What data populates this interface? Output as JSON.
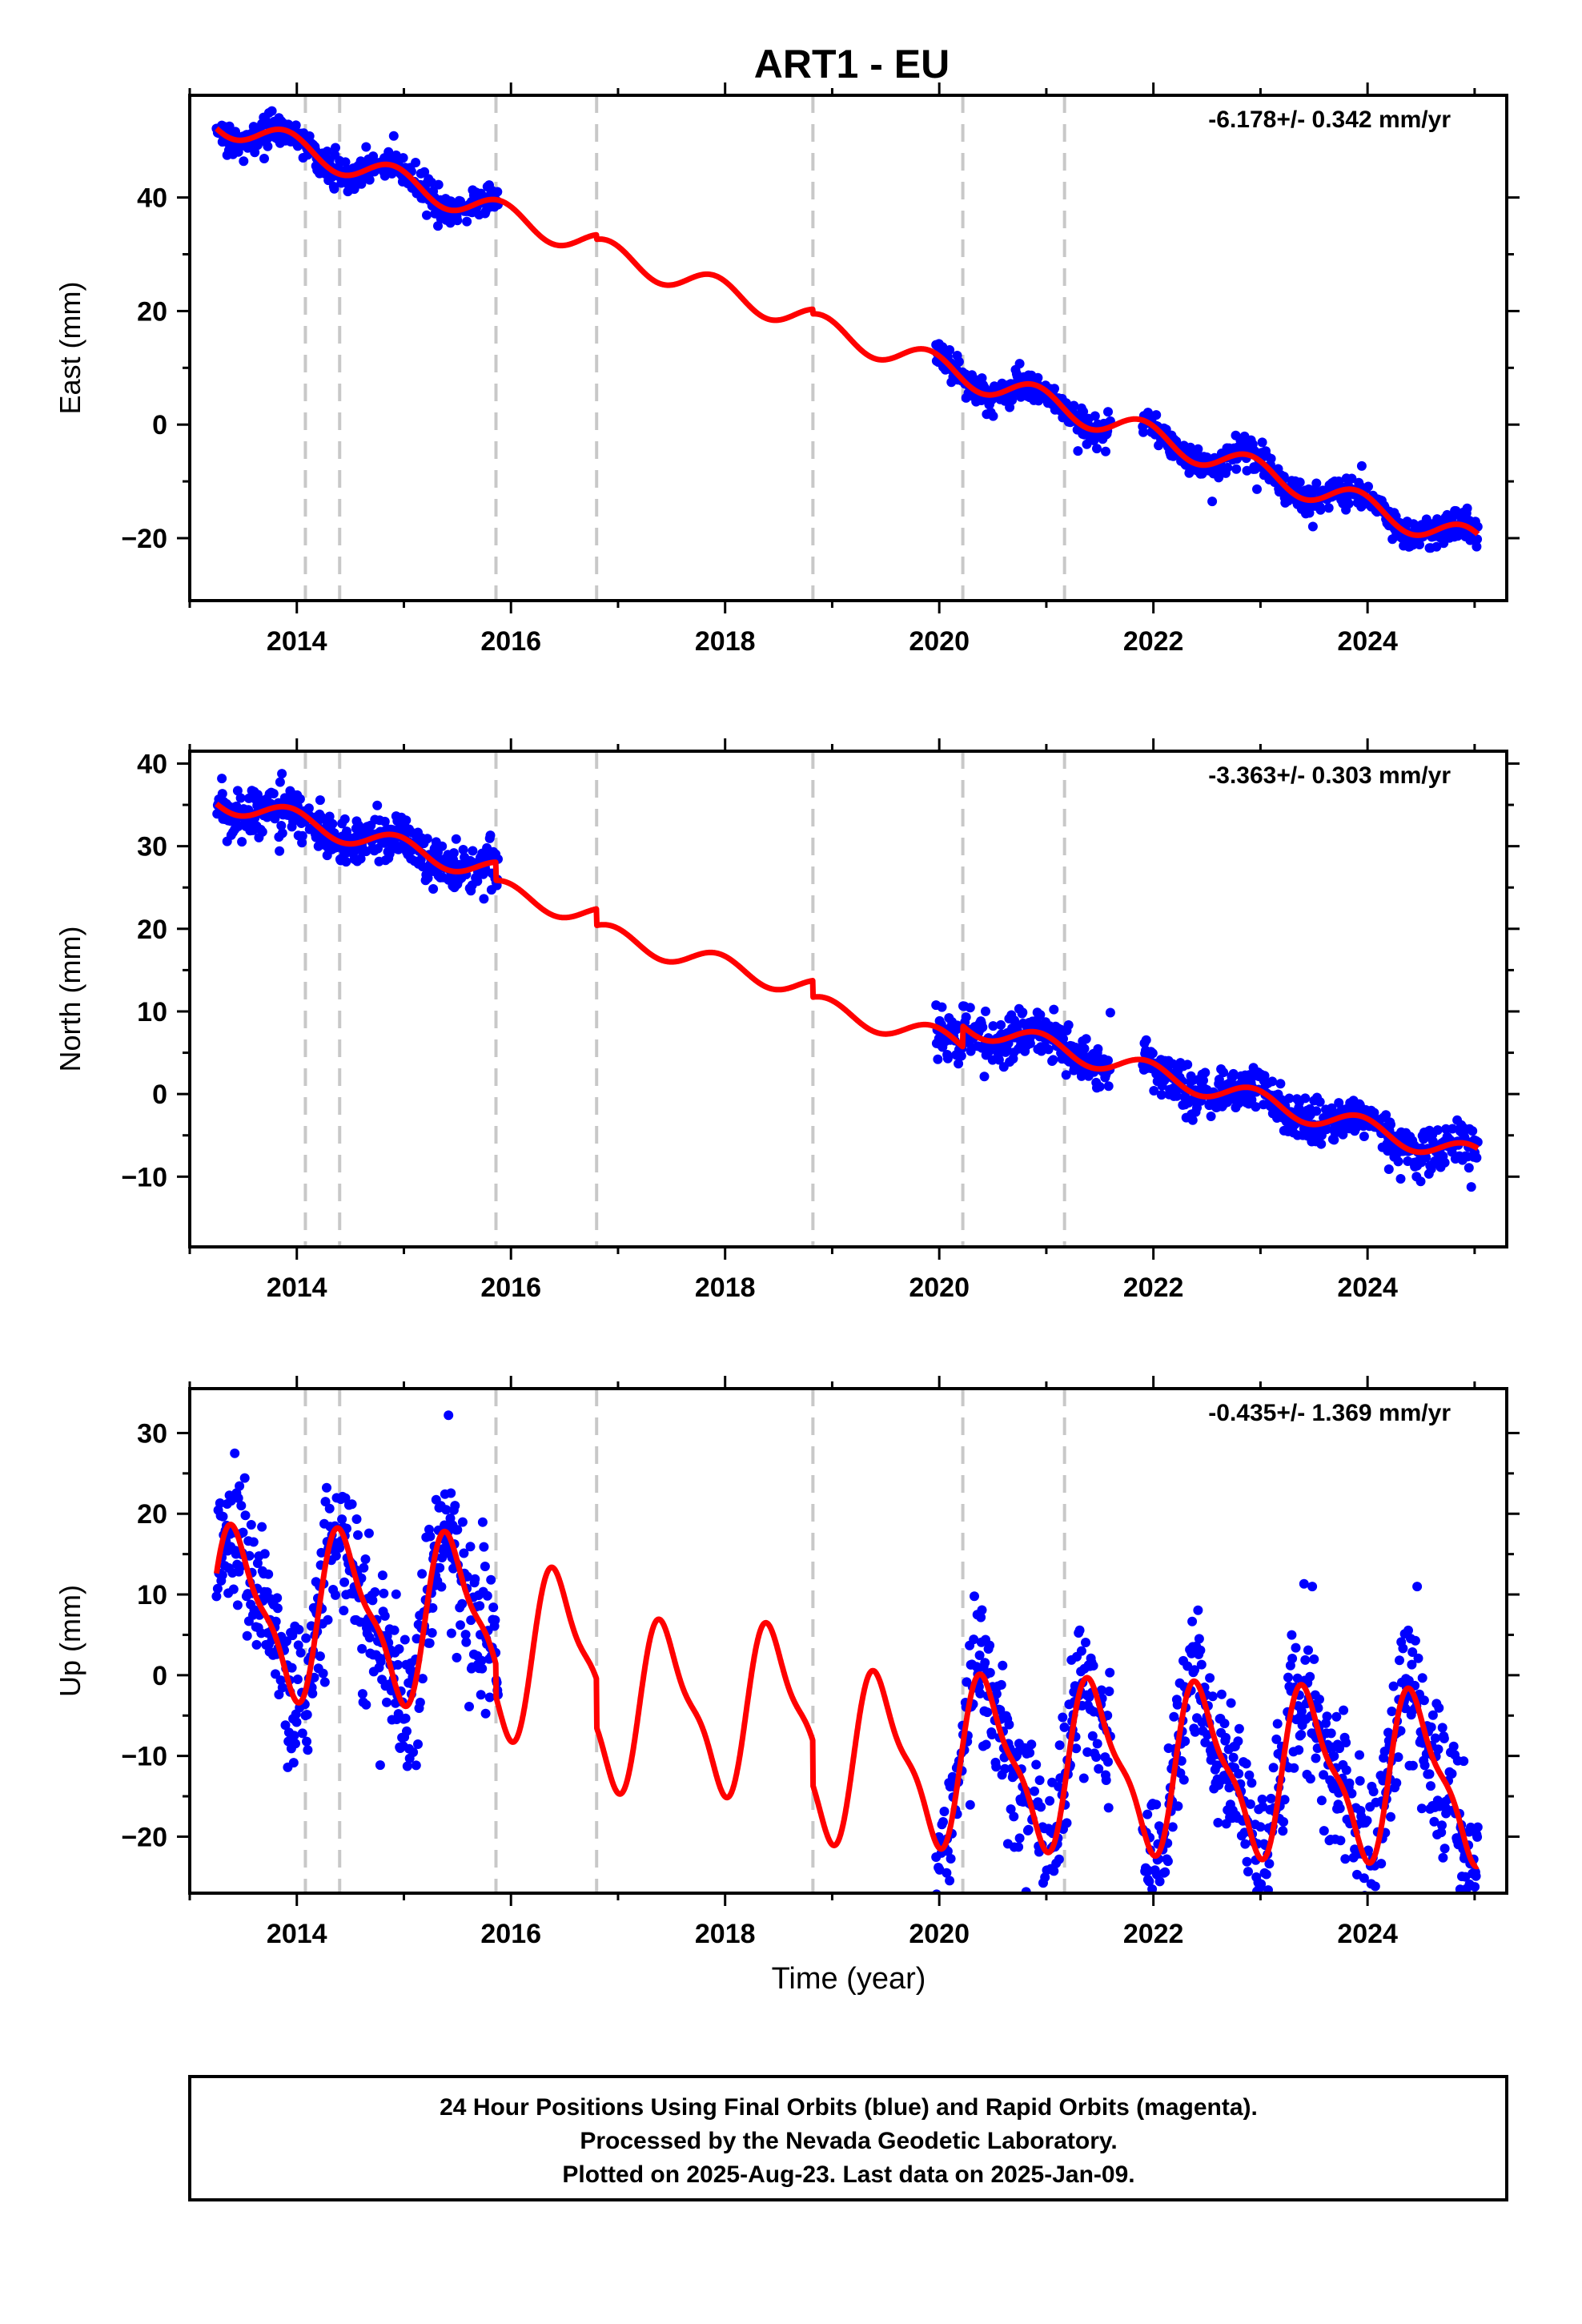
{
  "title": "ART1 - EU",
  "xlabel": "Time (year)",
  "footer": {
    "line1": "24 Hour Positions Using Final Orbits (blue) and Rapid Orbits (magenta).",
    "line2": "Processed by the Nevada Geodetic Laboratory.",
    "line3": "Plotted on 2025-Aug-23. Last data on 2025-Jan-09."
  },
  "colors": {
    "points": "#0000ff",
    "fit": "#ff0000",
    "steps": "#c8c8c8",
    "frame": "#000000"
  },
  "chart_data": [
    {
      "type": "scatter",
      "component": "East",
      "ylabel": "East (mm)",
      "rate_label": "-6.178+/- 0.342 mm/yr",
      "xlim": [
        2013.0,
        2025.3
      ],
      "ylim": [
        -31,
        58
      ],
      "xticks": [
        2014,
        2016,
        2018,
        2020,
        2022,
        2024
      ],
      "yticks": [
        -20,
        0,
        20,
        40
      ],
      "step_lines": [
        2014.08,
        2014.4,
        2015.86,
        2016.8,
        2018.82,
        2020.22,
        2021.17
      ],
      "data_spans": [
        [
          2013.25,
          2015.88
        ],
        [
          2019.97,
          2021.6
        ],
        [
          2021.9,
          2025.03
        ]
      ],
      "model": {
        "a": 53.2,
        "rate": -6.178,
        "amp": 2.3,
        "phase": 2.2,
        "t0": 2013.3
      },
      "noise_sd": 1.3,
      "curve_gaps": [
        [
          2016.8,
          -0.8
        ],
        [
          2018.82,
          -0.8
        ]
      ]
    },
    {
      "type": "scatter",
      "component": "North",
      "ylabel": "North (mm)",
      "rate_label": "-3.363+/- 0.303 mm/yr",
      "xlim": [
        2013.0,
        2025.3
      ],
      "ylim": [
        -18.5,
        41.5
      ],
      "xticks": [
        2014,
        2016,
        2018,
        2020,
        2022,
        2024
      ],
      "yticks": [
        -10,
        0,
        10,
        20,
        30,
        40
      ],
      "step_lines": [
        2014.08,
        2014.4,
        2015.86,
        2016.8,
        2018.82,
        2020.22,
        2021.17
      ],
      "data_spans": [
        [
          2013.25,
          2015.88
        ],
        [
          2019.97,
          2021.6
        ],
        [
          2021.9,
          2025.03
        ]
      ],
      "model": {
        "a": 35.5,
        "rate": -3.363,
        "amp": 1.3,
        "phase": 2.0,
        "t0": 2013.3
      },
      "noise_sd": 1.4,
      "curve_gaps": [
        [
          2015.86,
          -2.2
        ],
        [
          2016.8,
          -2.0
        ],
        [
          2018.82,
          -2.0
        ],
        [
          2020.22,
          2.5
        ]
      ]
    },
    {
      "type": "scatter",
      "component": "Up",
      "ylabel": "Up (mm)",
      "rate_label": "-0.435+/- 1.369 mm/yr",
      "xlim": [
        2013.0,
        2025.3
      ],
      "ylim": [
        -27,
        35.5
      ],
      "xticks": [
        2014,
        2016,
        2018,
        2020,
        2022,
        2024
      ],
      "yticks": [
        -20,
        -10,
        0,
        10,
        20,
        30
      ],
      "step_lines": [
        2014.08,
        2014.4,
        2015.86,
        2016.8,
        2018.82,
        2020.22,
        2021.17
      ],
      "data_spans": [
        [
          2013.25,
          2015.88
        ],
        [
          2019.97,
          2021.6
        ],
        [
          2021.9,
          2025.03
        ]
      ],
      "model": {
        "a": 7.8,
        "rate": -0.435,
        "amp": 9.5,
        "phase": -1.25,
        "t0": 2013.3,
        "harm2": 3.0
      },
      "noise_sd": 4.6,
      "curve_gaps": [
        [
          2015.86,
          -4.0
        ],
        [
          2016.8,
          -6.0
        ],
        [
          2018.82,
          -5.5
        ]
      ]
    }
  ]
}
